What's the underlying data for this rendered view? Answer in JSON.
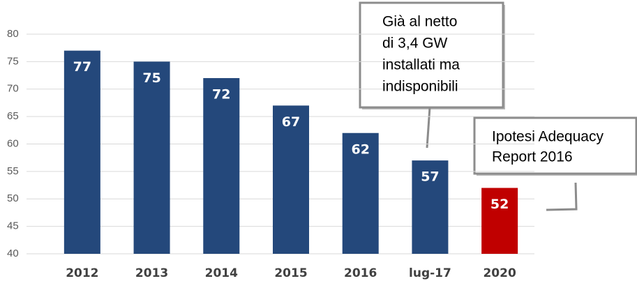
{
  "chart_data": {
    "type": "bar",
    "categories": [
      "2012",
      "2013",
      "2014",
      "2015",
      "2016",
      "lug-17",
      "2020"
    ],
    "values": [
      77,
      75,
      72,
      67,
      62,
      57,
      52
    ],
    "colors": [
      "#24487b",
      "#24487b",
      "#24487b",
      "#24487b",
      "#24487b",
      "#24487b",
      "#c00000"
    ],
    "ylim": [
      40,
      80
    ],
    "yticks": [
      40,
      45,
      50,
      55,
      60,
      65,
      70,
      75,
      80
    ],
    "grid": true,
    "annotations": [
      {
        "lines": [
          "Già al netto",
          "di 3,4 GW",
          "installati ma",
          "indisponibili"
        ]
      },
      {
        "lines": [
          "Ipotesi Adequacy",
          "Report 2016"
        ]
      }
    ]
  }
}
